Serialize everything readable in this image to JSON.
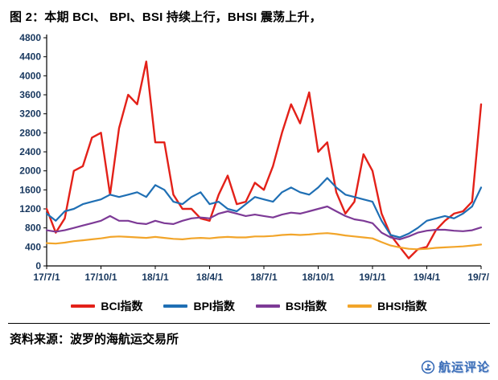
{
  "title": "图 2：本期 BCI、 BPI、BSI 持续上行，BHSI 震荡上升，",
  "source": "资料来源：波罗的海航运交易所",
  "watermark": {
    "label": "航运评论",
    "color": "#3a6db8"
  },
  "chart_data": {
    "type": "line",
    "title": "本期BCI、BPI、BSI持续上行，BHSI震荡上升",
    "xlabel": "",
    "ylabel": "",
    "ylim": [
      0,
      4800
    ],
    "ytick_step": 400,
    "grid": false,
    "legend_position": "bottom",
    "axis_color": "#17375e",
    "x_unit": "months since 2017-07-01",
    "x": [
      0,
      0.5,
      1,
      1.5,
      2,
      2.5,
      3,
      3.5,
      4,
      4.5,
      5,
      5.5,
      6,
      6.5,
      7,
      7.5,
      8,
      8.5,
      9,
      9.5,
      10,
      10.5,
      11,
      11.5,
      12,
      12.5,
      13,
      13.5,
      14,
      14.5,
      15,
      15.5,
      16,
      16.5,
      17,
      17.5,
      18,
      18.5,
      19,
      19.5,
      20,
      20.5,
      21,
      21.5,
      22,
      22.5,
      23,
      23.5,
      24
    ],
    "xticks": [
      {
        "pos": 0,
        "label": "17/7/1"
      },
      {
        "pos": 3,
        "label": "17/10/1"
      },
      {
        "pos": 6,
        "label": "18/1/1"
      },
      {
        "pos": 9,
        "label": "18/4/1"
      },
      {
        "pos": 12,
        "label": "18/7/1"
      },
      {
        "pos": 15,
        "label": "18/10/1"
      },
      {
        "pos": 18,
        "label": "19/1/1"
      },
      {
        "pos": 21,
        "label": "19/4/1"
      },
      {
        "pos": 24,
        "label": "19/7/1"
      }
    ],
    "series": [
      {
        "id": "bci",
        "name": "BCI指数",
        "color": "#e32119",
        "width": 2.4,
        "values": [
          1200,
          700,
          1000,
          2000,
          2100,
          2700,
          2800,
          1500,
          2900,
          3600,
          3400,
          4300,
          2600,
          2600,
          1500,
          1200,
          1200,
          1000,
          950,
          1500,
          1900,
          1300,
          1350,
          1750,
          1600,
          2100,
          2800,
          3400,
          3000,
          3650,
          2400,
          2600,
          1550,
          1100,
          1350,
          2350,
          2000,
          1100,
          650,
          400,
          160,
          350,
          400,
          750,
          950,
          1100,
          1150,
          1350,
          3400
        ]
      },
      {
        "id": "bpi",
        "name": "BPI指数",
        "color": "#1f6fb4",
        "width": 2.2,
        "values": [
          1100,
          950,
          1150,
          1200,
          1300,
          1350,
          1400,
          1500,
          1450,
          1500,
          1550,
          1450,
          1700,
          1600,
          1350,
          1300,
          1450,
          1550,
          1300,
          1350,
          1200,
          1150,
          1300,
          1450,
          1400,
          1350,
          1550,
          1650,
          1550,
          1500,
          1650,
          1850,
          1650,
          1500,
          1450,
          1400,
          1350,
          950,
          650,
          600,
          680,
          800,
          950,
          1000,
          1050,
          1000,
          1100,
          1250,
          1650
        ]
      },
      {
        "id": "bsi",
        "name": "BSI指数",
        "color": "#7d3a96",
        "width": 2.2,
        "values": [
          750,
          720,
          750,
          800,
          850,
          900,
          950,
          1050,
          950,
          950,
          900,
          880,
          950,
          900,
          880,
          950,
          1000,
          1020,
          1000,
          1100,
          1150,
          1100,
          1050,
          1080,
          1050,
          1020,
          1080,
          1120,
          1100,
          1150,
          1200,
          1250,
          1150,
          1050,
          980,
          950,
          900,
          700,
          600,
          560,
          620,
          700,
          740,
          760,
          760,
          740,
          730,
          750,
          810
        ]
      },
      {
        "id": "bhsi",
        "name": "BHSI指数",
        "color": "#f2a52a",
        "width": 2.2,
        "values": [
          480,
          470,
          490,
          520,
          540,
          560,
          580,
          610,
          620,
          610,
          600,
          590,
          610,
          590,
          570,
          560,
          580,
          590,
          580,
          600,
          610,
          600,
          600,
          620,
          620,
          630,
          650,
          660,
          650,
          660,
          680,
          690,
          670,
          640,
          620,
          600,
          580,
          500,
          430,
          390,
          360,
          350,
          360,
          380,
          390,
          400,
          410,
          430,
          450
        ]
      }
    ]
  }
}
